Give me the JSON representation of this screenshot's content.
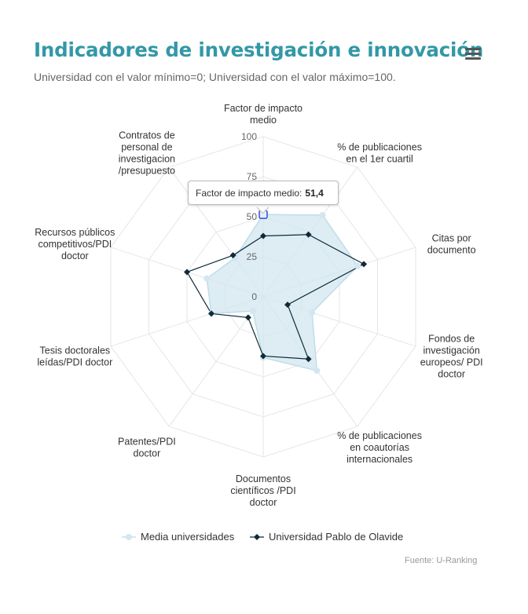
{
  "header": {
    "title": "Indicadores de investigación e innovación",
    "subtitle": "Universidad con el valor mínimo=0; Universidad con el valor máximo=100."
  },
  "menu_icon": "hamburger-menu-icon",
  "colors": {
    "title": "#3398a6",
    "media_fill": "#d2e7ef",
    "media_line": "#bfdde8",
    "olavide_line": "#0f2a3a",
    "grid": "#e6e6e6"
  },
  "chart_data": {
    "type": "radar",
    "title": "Indicadores de investigación e innovación",
    "subtitle": "Universidad con el valor mínimo=0; Universidad con el valor máximo=100.",
    "ylim": [
      0,
      100
    ],
    "y_ticks": [
      "0",
      "25",
      "50",
      "75",
      "100"
    ],
    "categories": [
      [
        "Factor de impacto",
        "medio"
      ],
      [
        "% de publicaciones",
        "en el 1er cuartil"
      ],
      [
        "Citas por",
        "documento"
      ],
      [
        "Fondos de",
        "investigación",
        "europeos/ PDI",
        "doctor"
      ],
      [
        "% de publicaciones",
        "en coautorías",
        "internacionales"
      ],
      [
        "Documentos",
        "científicos /PDI",
        "doctor"
      ],
      [
        "Patentes/PDI",
        "doctor"
      ],
      [
        "Tesis doctorales",
        "leídas/PDI doctor"
      ],
      [
        "Recursos públicos",
        "competitivos/PDI",
        "doctor"
      ],
      [
        "Contratos de",
        "personal de",
        "investigacion",
        "/presupuesto"
      ]
    ],
    "series": [
      {
        "name": "Media universidades",
        "values": [
          51.4,
          63,
          62,
          32,
          57,
          38,
          11,
          34,
          37,
          30
        ]
      },
      {
        "name": "Universidad Pablo de Olavide",
        "values": [
          38,
          48,
          66,
          16,
          48,
          37,
          16,
          34,
          50,
          32
        ]
      }
    ],
    "legend_position": "bottom-center",
    "grid": true,
    "credits": "Fuente: U-Ranking"
  },
  "tooltip": {
    "label": "Factor de impacto medio:",
    "value": "51,4"
  }
}
